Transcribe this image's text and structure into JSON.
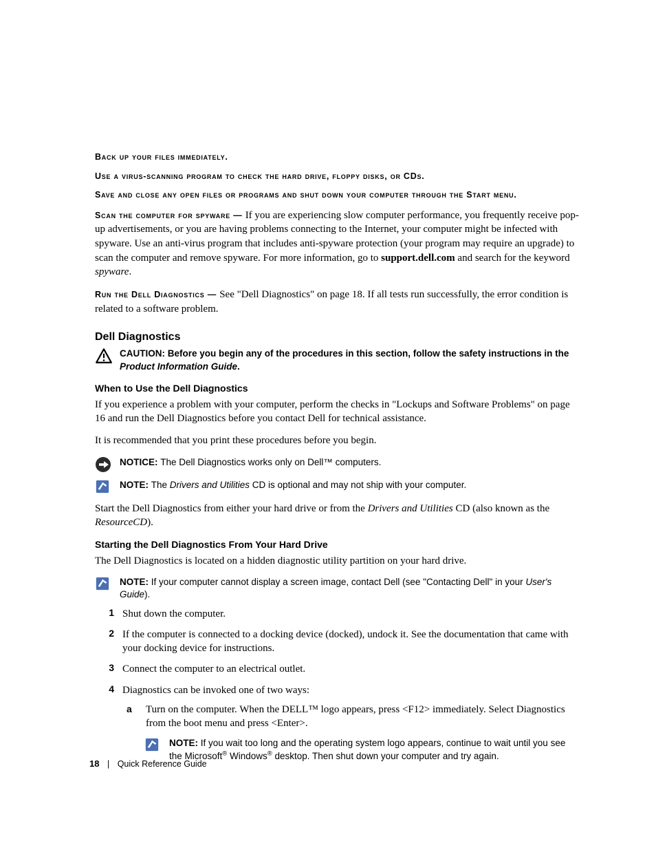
{
  "headers": {
    "h1": "Back up your files immediately.",
    "h2": "Use a virus-scanning program to check the hard drive, floppy disks, or CDs.",
    "h3": "Save and close any open files or programs and shut down your computer through the Start menu."
  },
  "spyware": {
    "lead": "Scan the computer for spyware — ",
    "body_a": "If you are experiencing slow computer performance, you frequently receive pop-up advertisements, or you are having problems connecting to the Internet, your computer might be infected with spyware. Use an anti-virus program that includes anti-spyware protection (your program may require an upgrade) to scan the computer and remove spyware. For more information, go to ",
    "bold_link": "support.dell.com",
    "body_b": " and search for the keyword ",
    "ital": "spyware",
    "body_c": "."
  },
  "rundiag": {
    "lead": "Run the Dell Diagnostics — ",
    "body": "See \"Dell Diagnostics\" on page 18. If all tests run successfully, the error condition is related to a software problem."
  },
  "diag": {
    "title": "Dell Diagnostics",
    "caution": {
      "label": "CAUTION: ",
      "text_a": "Before you begin any of the procedures in this section, follow the safety instructions in the ",
      "ital": "Product Information Guide",
      "text_b": "."
    },
    "when_title": "When to Use the Dell Diagnostics",
    "when_p1": "If you experience a problem with your computer, perform the checks in \"Lockups and Software Problems\" on page 16 and run the Dell Diagnostics before you contact Dell for technical assistance.",
    "when_p2": "It is recommended that you print these procedures before you begin.",
    "notice": {
      "label": "NOTICE: ",
      "text": "The Dell Diagnostics works only on Dell™ computers."
    },
    "note1": {
      "label": "NOTE: ",
      "text_a": "The ",
      "ital": "Drivers and Utilities",
      "text_b": " CD is optional and may not ship with your computer."
    },
    "start_para_a": "Start the Dell Diagnostics from either your hard drive or from the ",
    "start_ital1": "Drivers and Utilities",
    "start_para_b": " CD (also known as the ",
    "start_ital2": "ResourceCD",
    "start_para_c": ").",
    "hd_title": "Starting the Dell Diagnostics From Your Hard Drive",
    "hd_p1": "The Dell Diagnostics is located on a hidden diagnostic utility partition on your hard drive.",
    "note2": {
      "label": "NOTE: ",
      "text_a": "If your computer cannot display a screen image, contact Dell (see \"Contacting Dell\" in your ",
      "ital": "User's Guide",
      "text_b": ")."
    },
    "steps": {
      "s1": "Shut down the computer.",
      "s2": "If the computer is connected to a docking device (docked), undock it. See the documentation that came with your docking device for instructions.",
      "s3": "Connect the computer to an electrical outlet.",
      "s4": "Diagnostics can be invoked one of two ways:",
      "s4a": "Turn on the computer. When the DELL™ logo appears, press <F12> immediately. Select Diagnostics from the boot menu and press <Enter>."
    },
    "note3": {
      "label": "NOTE: ",
      "text_html": "If you wait too long and the operating system logo appears, continue to wait until you see the Microsoft<span class=\"sup\">®</span> Windows<span class=\"sup\">®</span> desktop. Then shut down your computer and try again."
    }
  },
  "footer": {
    "page": "18",
    "title": "Quick Reference Guide"
  },
  "colors": {
    "note_blue": "#4a6fb3",
    "notice_dark": "#2b2b2b",
    "caution_stroke": "#000000"
  }
}
